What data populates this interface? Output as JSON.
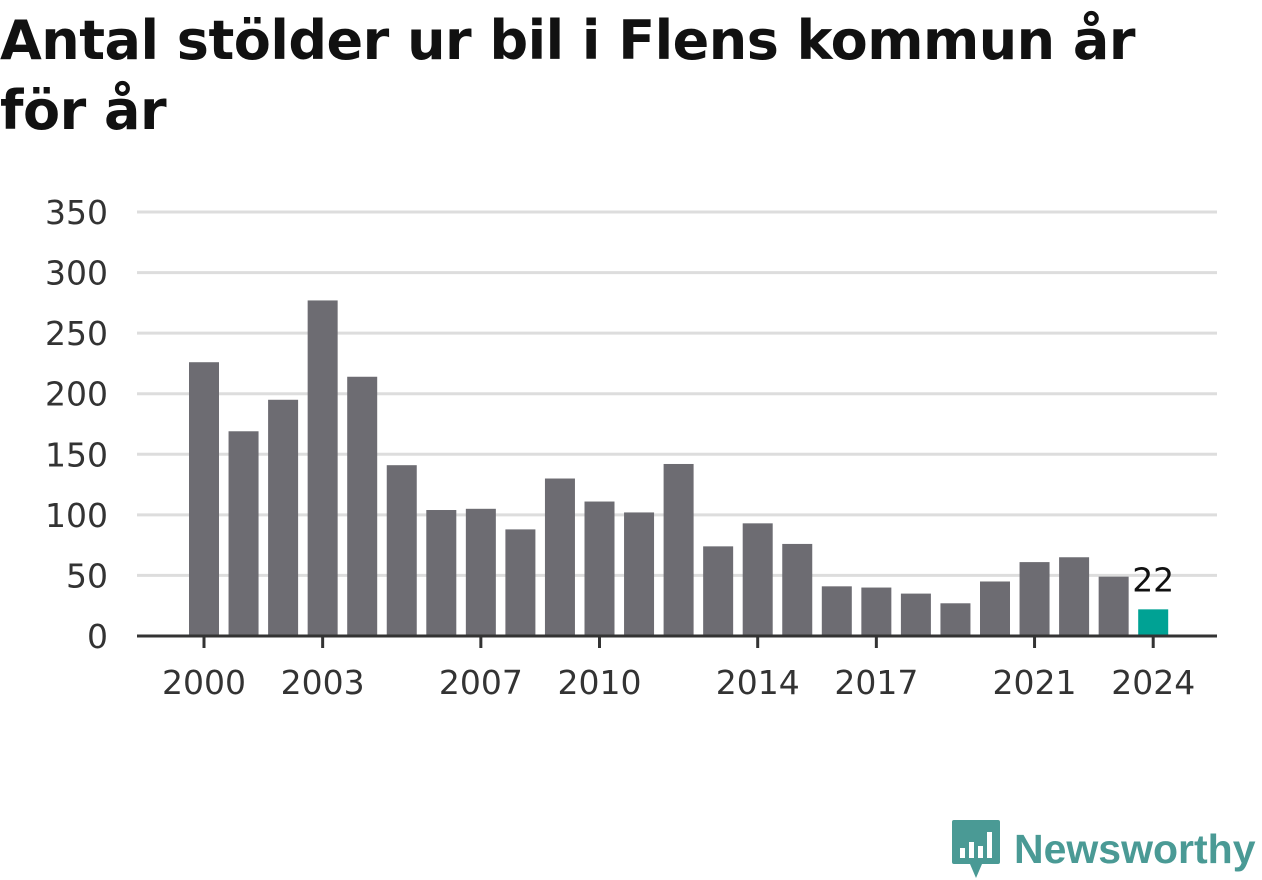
{
  "chart_data": {
    "type": "bar",
    "title": "Antal stölder ur bil i Flens kommun år för år",
    "xlabel": "",
    "ylabel": "",
    "categories": [
      "2000",
      "2001",
      "2002",
      "2003",
      "2004",
      "2005",
      "2006",
      "2007",
      "2008",
      "2009",
      "2010",
      "2011",
      "2012",
      "2013",
      "2014",
      "2015",
      "2016",
      "2017",
      "2018",
      "2019",
      "2020",
      "2021",
      "2022",
      "2023",
      "2024"
    ],
    "values": [
      226,
      169,
      195,
      277,
      214,
      141,
      104,
      105,
      88,
      130,
      111,
      102,
      142,
      74,
      93,
      76,
      41,
      40,
      35,
      27,
      45,
      61,
      65,
      49,
      22
    ],
    "x_tick_labels": [
      "2000",
      "2003",
      "2007",
      "2010",
      "2014",
      "2017",
      "2021",
      "2024"
    ],
    "y_ticks": [
      0,
      50,
      100,
      150,
      200,
      250,
      300,
      350
    ],
    "ylim": [
      0,
      350
    ],
    "highlight": {
      "category": "2024",
      "label": "22"
    },
    "grid": true,
    "colors": {
      "bar": "#6d6c72",
      "highlight": "#00a294",
      "grid": "#dddddd",
      "axis": "#333333"
    }
  },
  "branding": {
    "name": "Newsworthy",
    "icon": "newsworthy-logo-icon",
    "color": "#4a9a95"
  }
}
